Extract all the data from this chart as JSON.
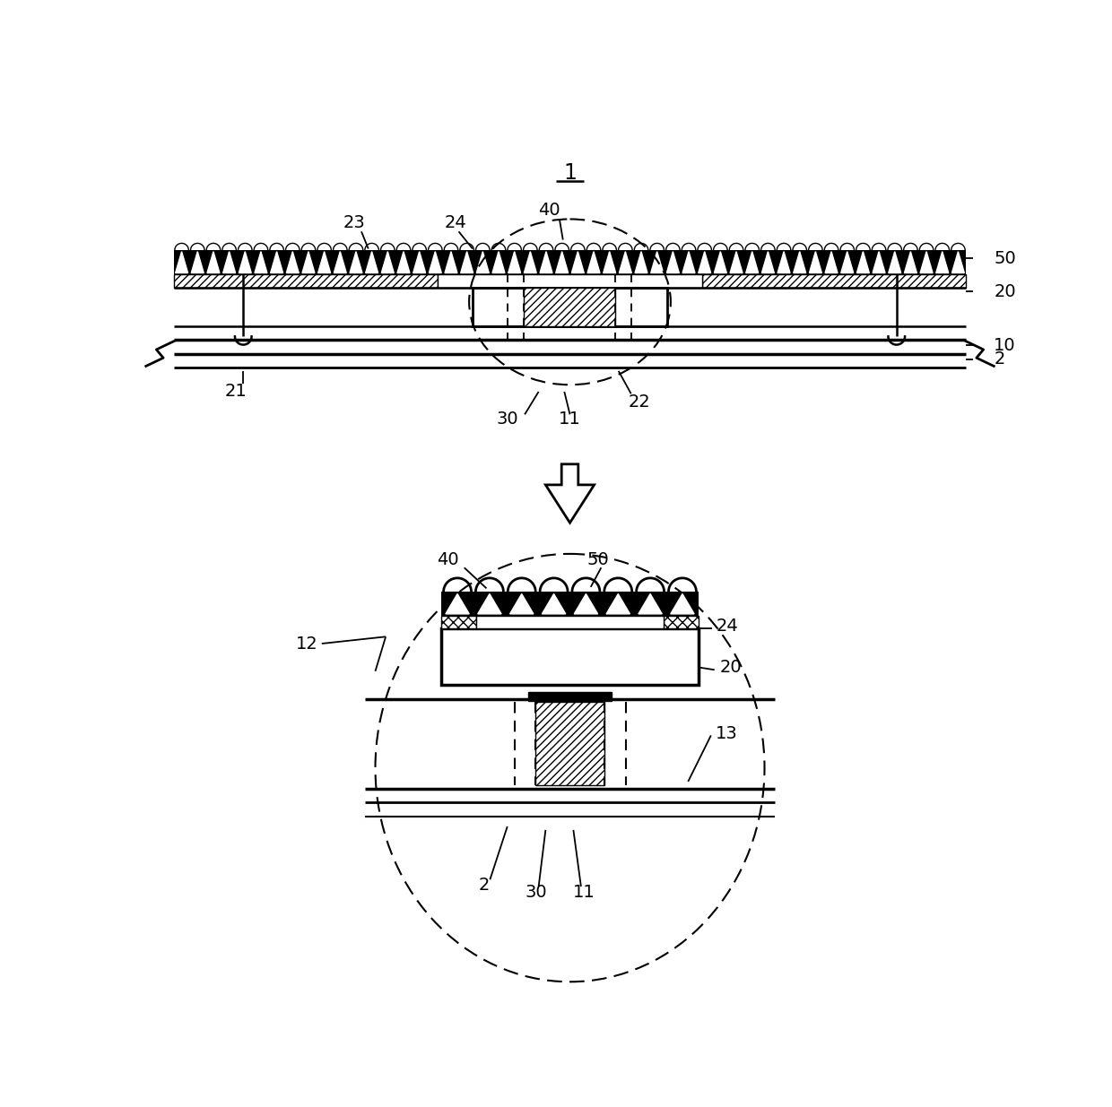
{
  "bg_color": "#ffffff",
  "fig_width": 12.4,
  "fig_height": 12.35
}
